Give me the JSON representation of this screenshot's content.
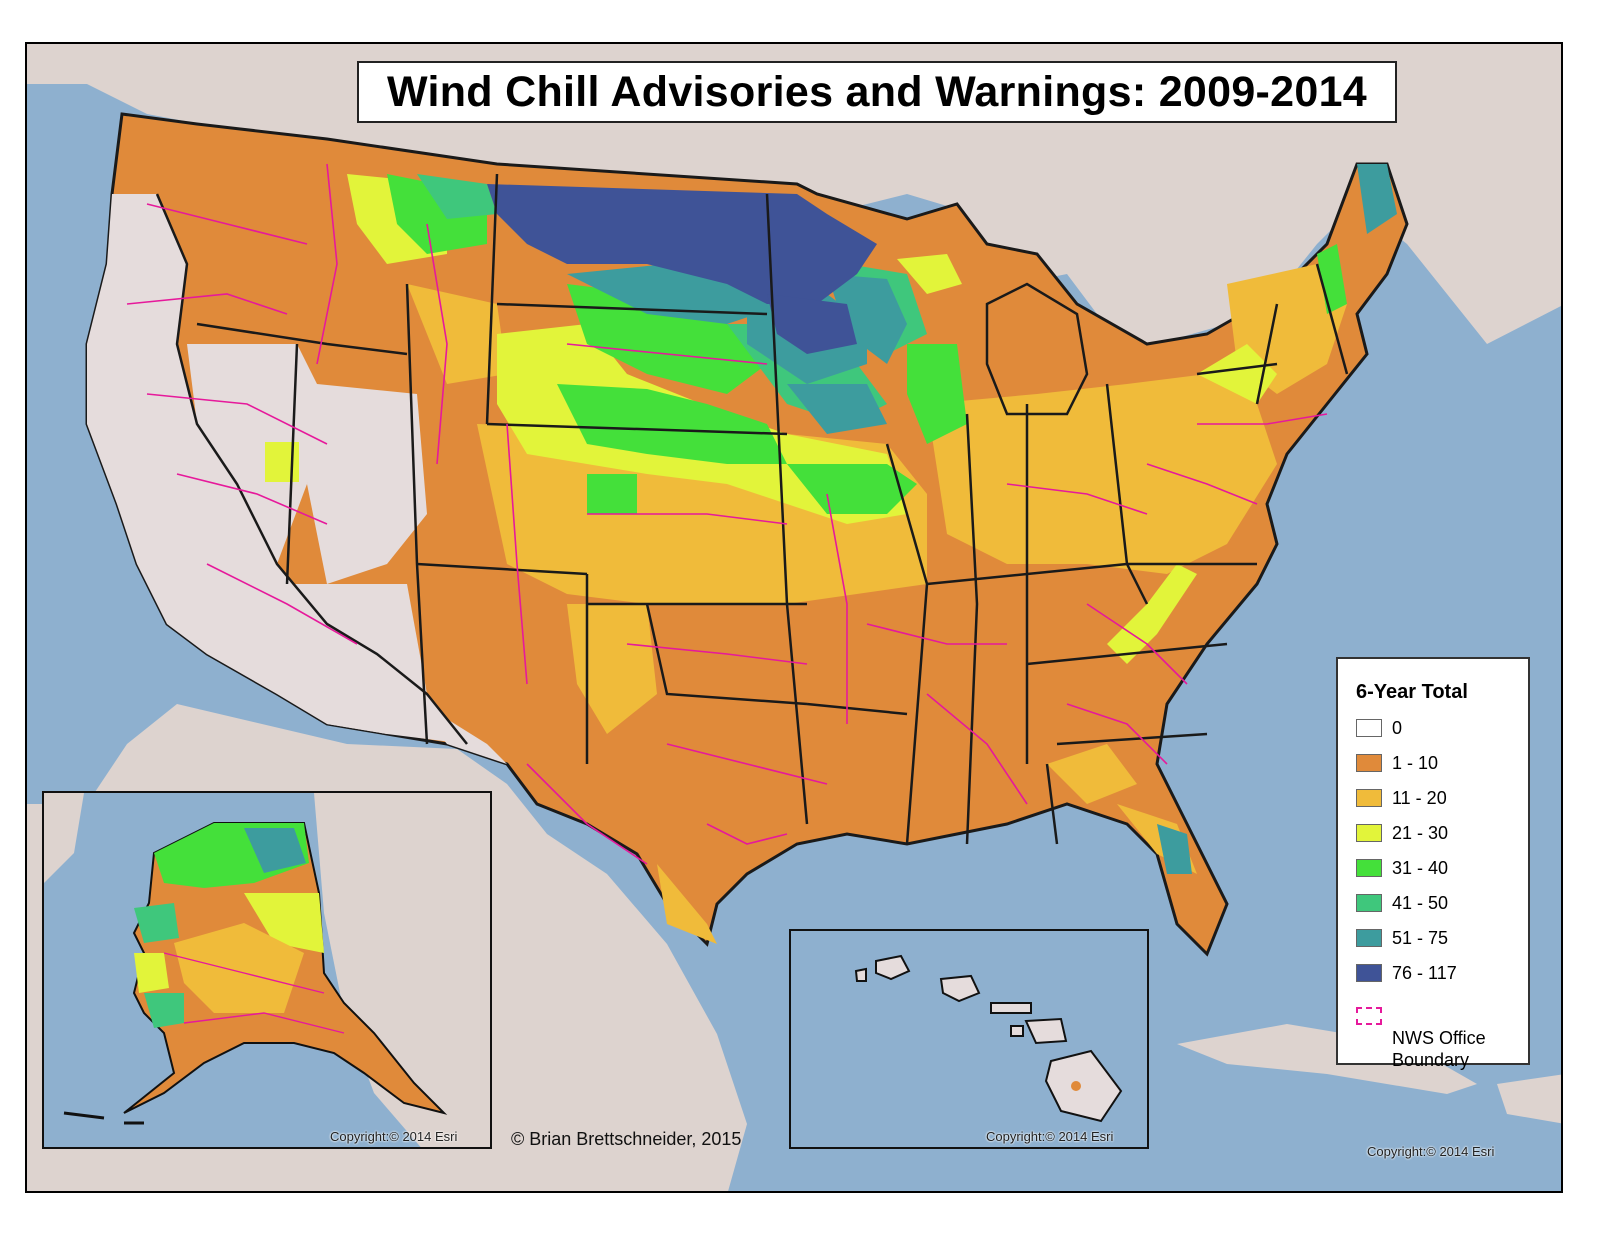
{
  "title": "Wind Chill Advisories and Warnings: 2009-2014",
  "legend": {
    "title": "6-Year Total",
    "classes": [
      {
        "label": "0",
        "color": "#ffffff"
      },
      {
        "label": "1 - 10",
        "color": "#e08a3a"
      },
      {
        "label": "11 - 20",
        "color": "#f0bb3a"
      },
      {
        "label": "21 - 30",
        "color": "#e2f43a"
      },
      {
        "label": "31 - 40",
        "color": "#44e03a"
      },
      {
        "label": "41 - 50",
        "color": "#3fc77c"
      },
      {
        "label": "51 - 75",
        "color": "#3d9c9e"
      },
      {
        "label": "76 - 117",
        "color": "#3f5397"
      }
    ],
    "boundary_label_line1": "NWS Office",
    "boundary_label_line2": "Boundary",
    "boundary_color": "#e6199b"
  },
  "credit": "© Brian Brettschneider, 2015",
  "copyright_alaska": "Copyright:© 2014 Esri",
  "copyright_hawaii": "Copyright:© 2014 Esri",
  "copyright_main": "Copyright:© 2014 Esri",
  "colors": {
    "water": "#8eb0cf",
    "land_other": "#ddd3cf",
    "zero_land": "#e5dcdc",
    "state_border": "#1a1a1a",
    "county_line": "#8a6a50"
  }
}
